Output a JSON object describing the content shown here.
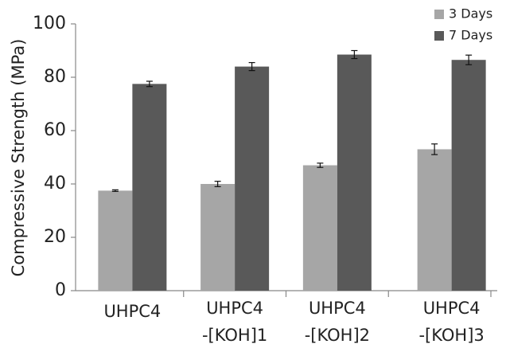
{
  "chart_data": {
    "type": "bar",
    "y_label": "Compressive Strength  (MPa)",
    "categories": [
      [
        "UHPC4"
      ],
      [
        "UHPC4",
        "-[KOH]1"
      ],
      [
        "UHPC4",
        "-[KOH]2"
      ],
      [
        "UHPC4",
        "-[KOH]3"
      ]
    ],
    "series": [
      {
        "name": "3 Days",
        "color": "#a6a6a6",
        "values": [
          37.5,
          40,
          47,
          53
        ],
        "errors": [
          0.3,
          1,
          0.8,
          2
        ]
      },
      {
        "name": "7 Days",
        "color": "#595959",
        "values": [
          77.5,
          84,
          88.5,
          86.5
        ],
        "errors": [
          1,
          1.5,
          1.5,
          1.8
        ]
      }
    ],
    "ylim": [
      0,
      100
    ],
    "yticks": [
      0,
      20,
      40,
      60,
      80,
      100
    ],
    "grid": false,
    "legend": "top-right"
  }
}
